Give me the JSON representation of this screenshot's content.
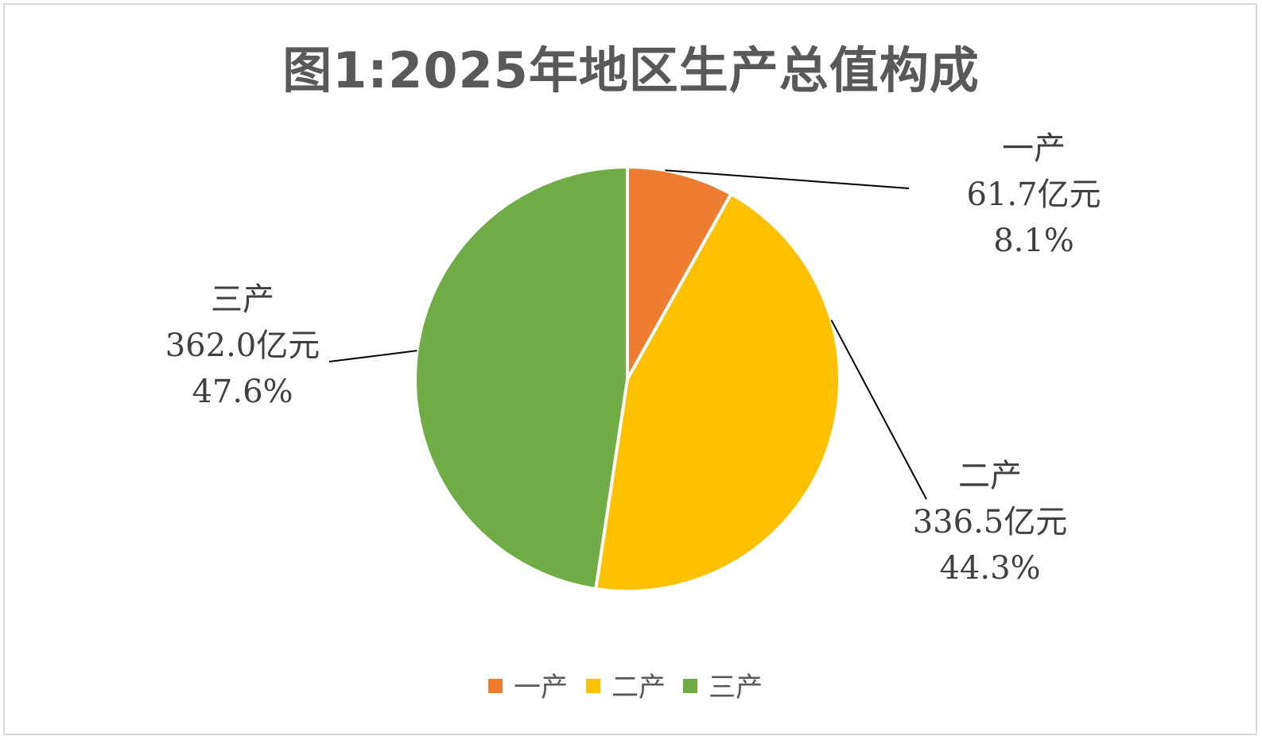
{
  "chart_data": {
    "type": "pie",
    "title": "图1:2025年地区生产总值构成",
    "slices": [
      {
        "name": "一产",
        "value": 61.7,
        "value_label": "61.7亿元",
        "percent_label": "8.1%",
        "color": "#ED7D31"
      },
      {
        "name": "二产",
        "value": 336.5,
        "value_label": "336.5亿元",
        "percent_label": "44.3%",
        "color": "#FFC000"
      },
      {
        "name": "三产",
        "value": 362.0,
        "value_label": "362.0亿元",
        "percent_label": "47.6%",
        "color": "#70AD47"
      }
    ],
    "legend_position": "bottom",
    "start_angle": "12 o'clock",
    "direction": "clockwise"
  }
}
